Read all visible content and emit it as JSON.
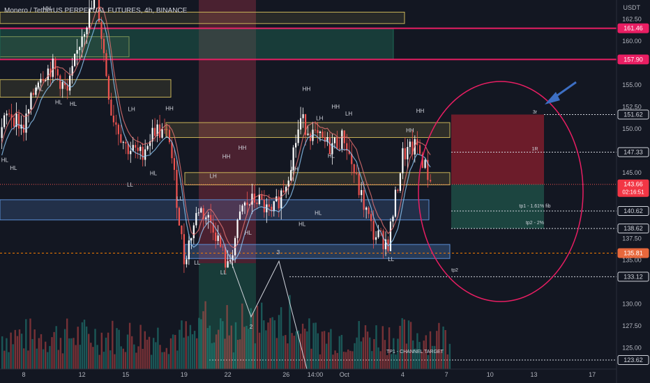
{
  "header": {
    "title": "Monero / TetherUS PERPETUAL FUTURES, 4h, BINANCE",
    "currency": "USDT"
  },
  "colors": {
    "background": "#131722",
    "bull": "#ffffff",
    "bear": "#ef5350",
    "supply_zone": "#c9b458",
    "demand_zone": "#5b8fd6",
    "magenta_line": "#e91e63",
    "target_box_red": "#8b1f2e",
    "target_box_green": "#1e4d45"
  },
  "chart_data": {
    "type": "candlestick",
    "ylim": [
      122.5,
      165.0
    ],
    "x_ticks": [
      {
        "label": "8",
        "day": 8
      },
      {
        "label": "12",
        "day": 12
      },
      {
        "label": "15",
        "day": 15
      },
      {
        "label": "19",
        "day": 19
      },
      {
        "label": "22",
        "day": 22
      },
      {
        "label": "26",
        "day": 26
      },
      {
        "label": "14:00",
        "day": 28
      },
      {
        "label": "Oct",
        "day": 30
      },
      {
        "label": "4",
        "day": 34
      },
      {
        "label": "7",
        "day": 37
      },
      {
        "label": "10",
        "day": 40
      },
      {
        "label": "13",
        "day": 43
      },
      {
        "label": "17",
        "day": 47
      }
    ],
    "y_ticks": [
      162.5,
      160.0,
      155.0,
      152.5,
      150.0,
      145.0,
      137.5,
      135.0,
      130.0,
      127.5,
      125.0
    ],
    "price_labels": [
      {
        "value": 161.46,
        "text": "161.46",
        "style": "magenta"
      },
      {
        "value": 157.9,
        "text": "157.90",
        "style": "magenta"
      },
      {
        "value": 151.62,
        "text": "151.62",
        "style": "box"
      },
      {
        "value": 147.33,
        "text": "147.33",
        "style": "box"
      },
      {
        "value": 143.66,
        "text": "143.66",
        "style": "current",
        "sub": "02:16:51"
      },
      {
        "value": 140.62,
        "text": "140.62",
        "style": "box"
      },
      {
        "value": 138.62,
        "text": "138.62",
        "style": "box"
      },
      {
        "value": 135.81,
        "text": "135.81",
        "style": "orange"
      },
      {
        "value": 133.12,
        "text": "133.12",
        "style": "box"
      },
      {
        "value": 123.62,
        "text": "123.62",
        "style": "box"
      }
    ],
    "anchors": [
      {
        "day": 5,
        "price": 142
      },
      {
        "day": 6,
        "price": 148
      },
      {
        "day": 7,
        "price": 152
      },
      {
        "day": 8,
        "price": 150
      },
      {
        "day": 9,
        "price": 156
      },
      {
        "day": 10,
        "price": 157
      },
      {
        "day": 11,
        "price": 154
      },
      {
        "day": 12,
        "price": 161
      },
      {
        "day": 13,
        "price": 165
      },
      {
        "day": 14,
        "price": 152
      },
      {
        "day": 15,
        "price": 148
      },
      {
        "day": 16,
        "price": 147
      },
      {
        "day": 17,
        "price": 150
      },
      {
        "day": 18,
        "price": 149
      },
      {
        "day": 19,
        "price": 135
      },
      {
        "day": 20,
        "price": 141
      },
      {
        "day": 21,
        "price": 139
      },
      {
        "day": 22,
        "price": 134
      },
      {
        "day": 23,
        "price": 141
      },
      {
        "day": 24,
        "price": 142
      },
      {
        "day": 25,
        "price": 140
      },
      {
        "day": 26,
        "price": 144
      },
      {
        "day": 27,
        "price": 151
      },
      {
        "day": 28,
        "price": 149
      },
      {
        "day": 29,
        "price": 148
      },
      {
        "day": 30,
        "price": 149
      },
      {
        "day": 31,
        "price": 143
      },
      {
        "day": 32,
        "price": 138
      },
      {
        "day": 33,
        "price": 137
      },
      {
        "day": 34,
        "price": 147
      },
      {
        "day": 35,
        "price": 148
      },
      {
        "day": 35.9,
        "price": 144
      }
    ],
    "labels": [
      {
        "text": "HH",
        "day": 9.6,
        "price": 163.5
      },
      {
        "text": "HH",
        "day": 13.4,
        "price": 165.2
      },
      {
        "text": "HL",
        "day": 9.1,
        "price": 154.3
      },
      {
        "text": "HL",
        "day": 10.4,
        "price": 152.8
      },
      {
        "text": "HL",
        "day": 11.4,
        "price": 152.6
      },
      {
        "text": "LH",
        "day": 6.0,
        "price": 153.0
      },
      {
        "text": "HL",
        "day": 6.7,
        "price": 146.2
      },
      {
        "text": "HL",
        "day": 7.3,
        "price": 145.3
      },
      {
        "text": "LL",
        "day": 5.3,
        "price": 139.1
      },
      {
        "text": "LH",
        "day": 15.4,
        "price": 152.0
      },
      {
        "text": "HH",
        "day": 18.0,
        "price": 152.1
      },
      {
        "text": "LL",
        "day": 15.3,
        "price": 143.4
      },
      {
        "text": "HL",
        "day": 16.9,
        "price": 144.7
      },
      {
        "text": "LL",
        "day": 18.7,
        "price": 141.8
      },
      {
        "text": "LL",
        "day": 19.9,
        "price": 134.5
      },
      {
        "text": "HH",
        "day": 21.9,
        "price": 146.6
      },
      {
        "text": "LH",
        "day": 21.0,
        "price": 144.4
      },
      {
        "text": "HH",
        "day": 23.0,
        "price": 147.6
      },
      {
        "text": "LL",
        "day": 21.7,
        "price": 133.4
      },
      {
        "text": "LH",
        "day": 26.6,
        "price": 145.2
      },
      {
        "text": "HL",
        "day": 23.4,
        "price": 137.9
      },
      {
        "text": "HH",
        "day": 27.4,
        "price": 154.3
      },
      {
        "text": "LH",
        "day": 28.3,
        "price": 151.0
      },
      {
        "text": "HH",
        "day": 29.4,
        "price": 152.3
      },
      {
        "text": "LH",
        "day": 30.3,
        "price": 151.5
      },
      {
        "text": "HL",
        "day": 29.1,
        "price": 146.7
      },
      {
        "text": "HL",
        "day": 28.2,
        "price": 140.2
      },
      {
        "text": "HL",
        "day": 27.1,
        "price": 138.9
      },
      {
        "text": "HH",
        "day": 35.2,
        "price": 151.8
      },
      {
        "text": "HH",
        "day": 34.5,
        "price": 149.6
      },
      {
        "text": "LL",
        "day": 33.2,
        "price": 134.9
      }
    ],
    "annotations": {
      "r3": "3r",
      "r1": "1R",
      "tp1": "tp1 - 1.61% fib",
      "tp2_2pct": "tp2 - 2%",
      "tp2": "tp2",
      "tp1_channel": "TP1 - CHANNEL TARGET",
      "wave2": "2",
      "wave3": "3"
    }
  }
}
